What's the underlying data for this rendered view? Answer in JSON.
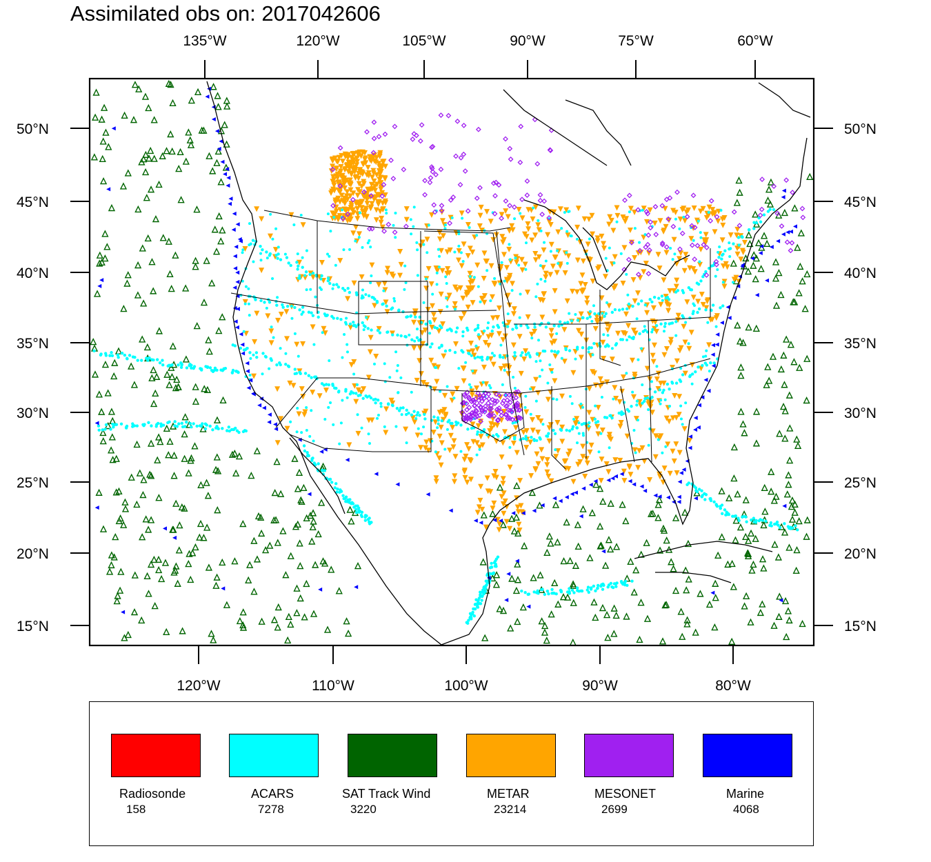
{
  "title": "Assimilated obs on: 2017042606",
  "map": {
    "top_lon_labels": [
      "135°W",
      "120°W",
      "105°W",
      "90°W",
      "75°W",
      "60°W"
    ],
    "bottom_lon_labels": [
      "120°W",
      "110°W",
      "100°W",
      "90°W",
      "80°W"
    ],
    "lat_labels": [
      "50°N",
      "45°N",
      "40°N",
      "35°N",
      "30°N",
      "25°N",
      "20°N",
      "15°N"
    ]
  },
  "legend": [
    {
      "name": "Radiosonde",
      "count": "158",
      "color": "#ff0000"
    },
    {
      "name": "ACARS",
      "count": "7278",
      "color": "#00ffff"
    },
    {
      "name": "SAT Track Wind",
      "count": "3220",
      "color": "#006400"
    },
    {
      "name": "METAR",
      "count": "23214",
      "color": "#ffa500"
    },
    {
      "name": "MESONET",
      "count": "2699",
      "color": "#a020f0"
    },
    {
      "name": "Marine",
      "count": "4068",
      "color": "#0000ff"
    }
  ]
}
